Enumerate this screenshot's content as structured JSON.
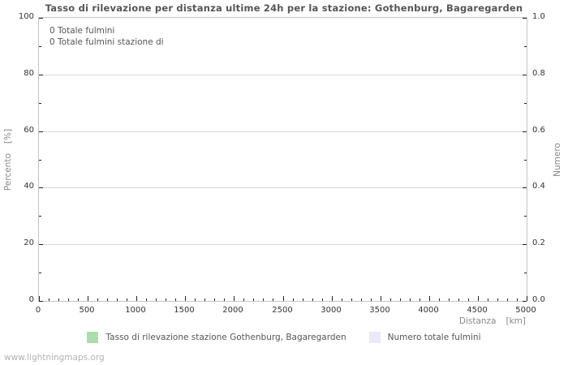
{
  "page": {
    "watermark": "www.lightningmaps.org"
  },
  "chart_data": {
    "type": "line",
    "title": "Tasso di rilevazione per distanza ultime 24h per la stazione: Gothenburg, Bagaregarden",
    "xlabel_name": "Distanza",
    "xlabel_unit": "[km]",
    "ylabel_left_name": "Percento",
    "ylabel_left_unit": "[%]",
    "ylabel_right": "Numero",
    "xlim": [
      0,
      5000
    ],
    "ylim_left": [
      0,
      100
    ],
    "ylim_right": [
      0.0,
      1.0
    ],
    "x_ticks_major": [
      0,
      500,
      1000,
      1500,
      2000,
      2500,
      3000,
      3500,
      4000,
      4500,
      5000
    ],
    "x_minor_step": 100,
    "x_major_step": 500,
    "y_ticks_left": [
      0,
      20,
      40,
      60,
      80,
      100
    ],
    "y_left_minor_step": 10,
    "y_left_major_step": 20,
    "y_ticks_right": [
      "0.0",
      "0.2",
      "0.4",
      "0.6",
      "0.8",
      "1.0"
    ],
    "grid_y_values": [
      20,
      40,
      60,
      80
    ],
    "grid": "horizontal-only",
    "legend_position": "bottom-center",
    "annotations": [
      "0 Totale fulmini",
      "0 Totale fulmini stazione di"
    ],
    "series": [
      {
        "name": "Tasso di rilevazione stazione Gothenburg, Bagaregarden",
        "axis": "left",
        "color": "#abdcab",
        "x": [],
        "values": []
      },
      {
        "name": "Numero totale fulmini",
        "axis": "right",
        "color": "#e9e9f8",
        "x": [],
        "values": []
      }
    ],
    "legend": [
      {
        "label": "Tasso di rilevazione stazione Gothenburg, Bagaregarden",
        "color": "#abdcab"
      },
      {
        "label": "Numero totale fulmini",
        "color": "#e9e9f8"
      }
    ]
  }
}
